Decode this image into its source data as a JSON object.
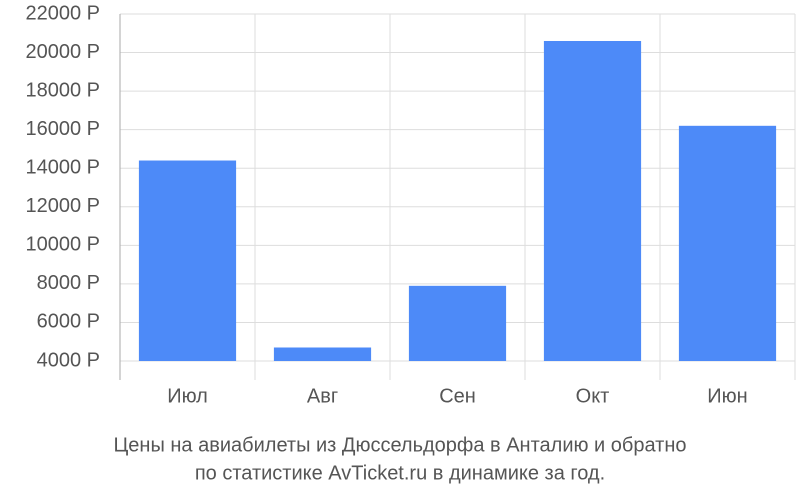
{
  "chart_data": {
    "type": "bar",
    "title": [
      "Цены на авиабилеты из Дюссельдорфа в Анталию и обратно",
      "по статистике AvTicket.ru в динамике за год."
    ],
    "categories": [
      "Июл",
      "Авг",
      "Сен",
      "Окт",
      "Июн"
    ],
    "values": [
      14400,
      4700,
      7900,
      20600,
      16200
    ],
    "color": "#4d8af8",
    "ylim": [
      4000,
      22000
    ],
    "yticks": [
      {
        "value": 4000,
        "label": "4000 Р"
      },
      {
        "value": 6000,
        "label": "6000 Р"
      },
      {
        "value": 8000,
        "label": "8000 Р"
      },
      {
        "value": 10000,
        "label": "10000 Р"
      },
      {
        "value": 12000,
        "label": "12000 Р"
      },
      {
        "value": 14000,
        "label": "14000 Р"
      },
      {
        "value": 16000,
        "label": "16000 Р"
      },
      {
        "value": 18000,
        "label": "18000 Р"
      },
      {
        "value": 20000,
        "label": "20000 Р"
      },
      {
        "value": 22000,
        "label": "22000 Р"
      }
    ],
    "grid": true
  }
}
